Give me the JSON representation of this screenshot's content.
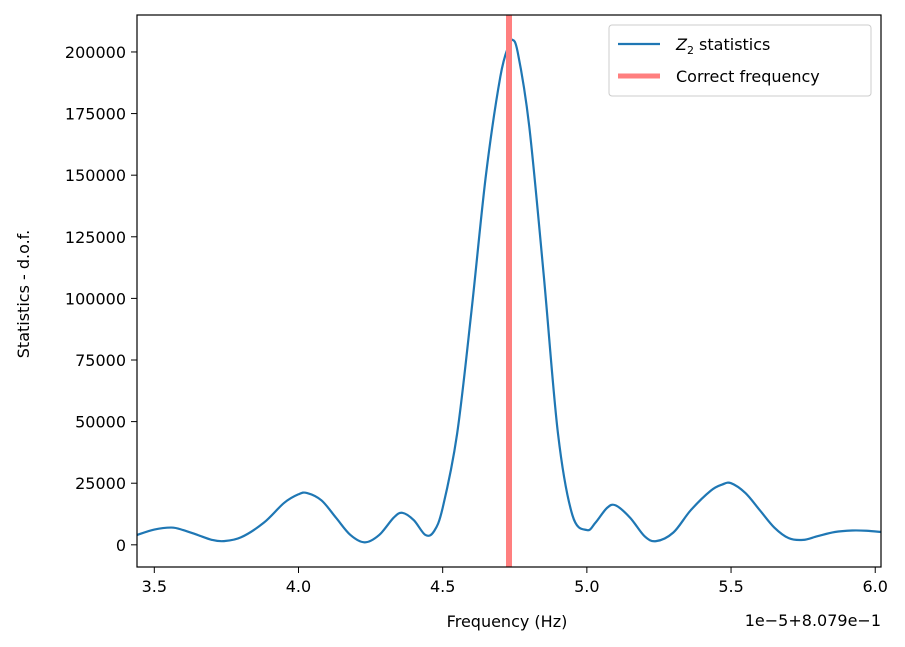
{
  "chart_data": {
    "type": "line",
    "xlabel": "Frequency (Hz)",
    "ylabel": "Statistics - d.o.f.",
    "offset_text": "1e−5+8.079e−1",
    "xlim": [
      3.44,
      6.02
    ],
    "ylim": [
      -9000,
      215000
    ],
    "x_ticks": [
      3.5,
      4.0,
      4.5,
      5.0,
      5.5,
      6.0
    ],
    "x_tick_labels": [
      "3.5",
      "4.0",
      "4.5",
      "5.0",
      "5.5",
      "6.0"
    ],
    "y_ticks": [
      0,
      25000,
      50000,
      75000,
      100000,
      125000,
      150000,
      175000,
      200000
    ],
    "y_tick_labels": [
      "0",
      "25000",
      "50000",
      "75000",
      "100000",
      "125000",
      "150000",
      "175000",
      "200000"
    ],
    "grid": false,
    "legend_position": "top-right",
    "series": [
      {
        "name": "Z₂ statistics",
        "name_main": "Z",
        "name_sub": "2",
        "name_rest": " statistics",
        "color": "#1f77b4",
        "x": [
          3.44,
          3.5,
          3.56,
          3.6,
          3.65,
          3.7,
          3.74,
          3.8,
          3.88,
          3.95,
          4.0,
          4.03,
          4.08,
          4.13,
          4.18,
          4.23,
          4.28,
          4.33,
          4.36,
          4.4,
          4.44,
          4.47,
          4.5,
          4.55,
          4.6,
          4.65,
          4.7,
          4.73,
          4.74,
          4.76,
          4.8,
          4.85,
          4.9,
          4.95,
          5.0,
          5.03,
          5.07,
          5.1,
          5.15,
          5.2,
          5.24,
          5.3,
          5.36,
          5.43,
          5.47,
          5.5,
          5.55,
          5.6,
          5.65,
          5.7,
          5.75,
          5.8,
          5.86,
          5.92,
          5.97,
          6.02
        ],
        "y": [
          4000,
          6200,
          7000,
          6000,
          4000,
          2000,
          1500,
          3000,
          9000,
          17000,
          20500,
          21000,
          18000,
          11000,
          4000,
          1000,
          4000,
          11000,
          13000,
          10000,
          4000,
          5500,
          15000,
          45000,
          95000,
          150000,
          190000,
          203000,
          205000,
          200000,
          170000,
          110000,
          45000,
          12000,
          6000,
          9000,
          15000,
          16000,
          11000,
          3500,
          1500,
          5000,
          14000,
          22000,
          24500,
          25000,
          21000,
          14000,
          7000,
          2700,
          2000,
          3500,
          5200,
          5800,
          5700,
          5200
        ]
      },
      {
        "name": "Correct frequency",
        "color": "#ff7f7f",
        "type": "vline",
        "x": 4.73
      }
    ]
  }
}
